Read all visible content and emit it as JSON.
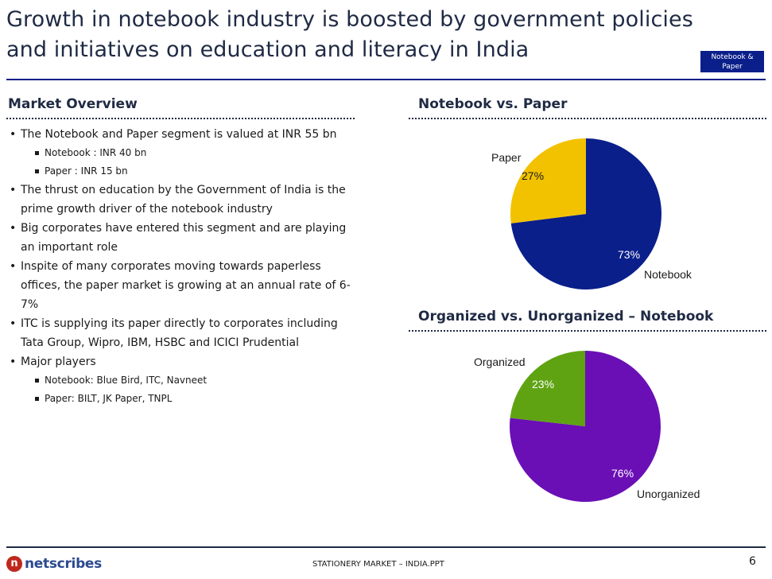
{
  "slide": {
    "title_line1": "Growth in notebook industry is boosted by government policies",
    "title_line2": "and initiatives on education and literacy in India",
    "tag_line1": "Notebook &",
    "tag_line2": "Paper"
  },
  "market_overview": {
    "heading": "Market Overview",
    "b1": "The Notebook and Paper segment is valued at INR 55 bn",
    "b1_sub1": "Notebook : INR 40 bn",
    "b1_sub2": "Paper : INR 15 bn",
    "b2": "The thrust on education by the Government of India is the prime growth driver of the notebook industry",
    "b3": "Big corporates have entered this segment and are playing an important role",
    "b4": "Inspite of many corporates moving towards paperless offices, the paper market is growing at an annual rate of 6-7%",
    "b5": "ITC is supplying its paper directly to corporates including Tata Group, Wipro, IBM, HSBC and ICICI Prudential",
    "b6": "Major players",
    "b6_sub1": "Notebook: Blue Bird, ITC, Navneet",
    "b6_sub2": "Paper: BILT, JK Paper, TNPL"
  },
  "chart_data": [
    {
      "type": "pie",
      "title": "Notebook vs. Paper",
      "categories": [
        "Notebook",
        "Paper"
      ],
      "values": [
        73,
        27
      ],
      "value_labels": [
        "73%",
        "27%"
      ],
      "colors": [
        "#0a1f8a",
        "#f2c200"
      ]
    },
    {
      "type": "pie",
      "title": "Organized vs. Unorganized – Notebook",
      "categories": [
        "Unorganized",
        "Organized"
      ],
      "values": [
        76,
        23
      ],
      "value_labels": [
        "76%",
        "23%"
      ],
      "colors": [
        "#6a0fb5",
        "#5fa313"
      ]
    }
  ],
  "footer": {
    "logo_mark": "n",
    "logo_text": "netscribes",
    "center_text": "STATIONERY MARKET – INDIA.PPT",
    "page_number": "6"
  }
}
